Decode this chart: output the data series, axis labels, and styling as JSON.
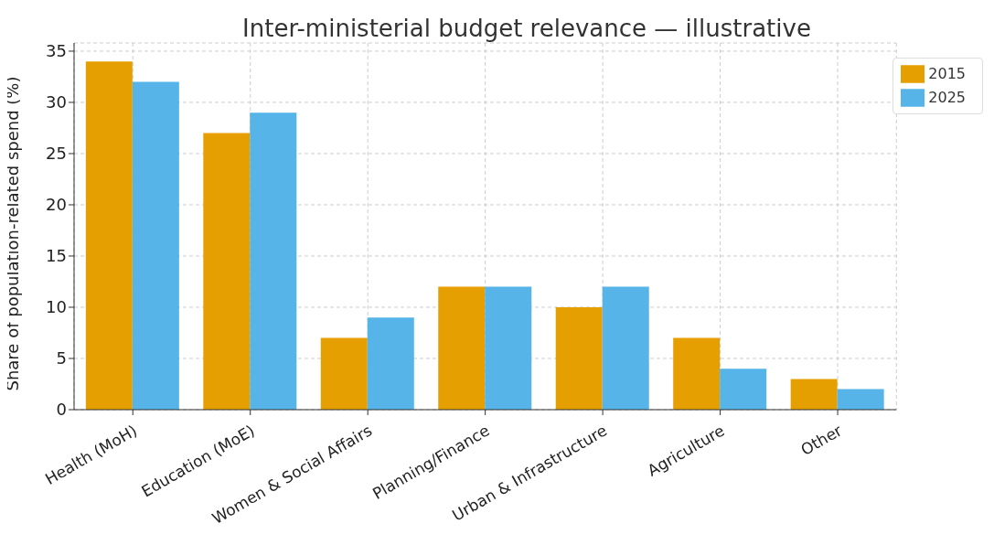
{
  "chart_data": {
    "type": "bar",
    "title": "Inter-ministerial budget relevance — illustrative",
    "ylabel": "Share of population-related spend (%)",
    "categories": [
      "Health (MoH)",
      "Education (MoE)",
      "Women & Social Affairs",
      "Planning/Finance",
      "Urban & Infrastructure",
      "Agriculture",
      "Other"
    ],
    "series": [
      {
        "name": "2015",
        "color": "#e69f00",
        "values": [
          34,
          27,
          7,
          12,
          10,
          7,
          3
        ]
      },
      {
        "name": "2025",
        "color": "#56b4e9",
        "values": [
          32,
          29,
          9,
          12,
          12,
          4,
          2
        ]
      }
    ],
    "ylim": [
      0,
      35.8
    ],
    "yticks": [
      0,
      5,
      10,
      15,
      20,
      25,
      30,
      35
    ],
    "grid": true,
    "legend": "top right"
  }
}
